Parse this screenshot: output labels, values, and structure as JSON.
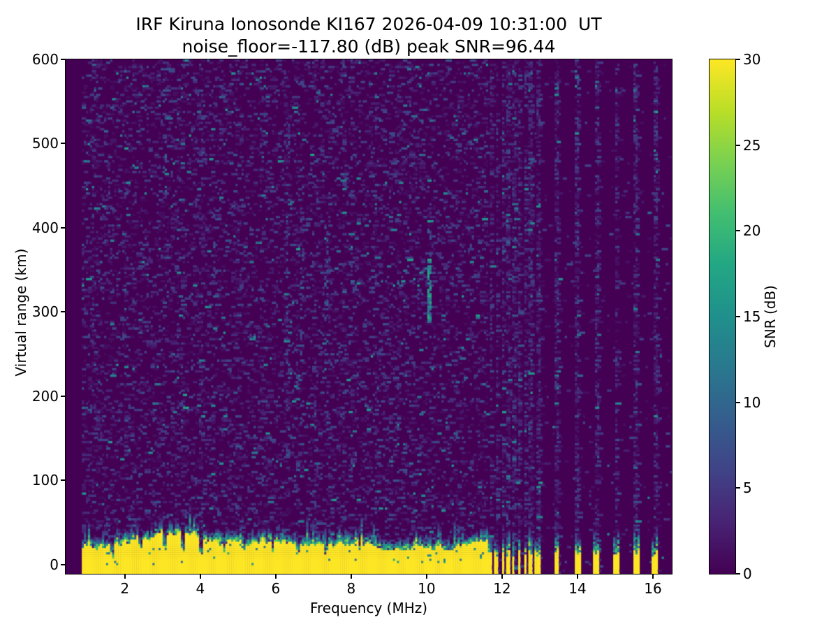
{
  "title": {
    "line1": "IRF Kiruna Ionosonde KI167 2026-04-09 10:31:00  UT",
    "line2": "noise_floor=-117.80 (dB) peak SNR=96.44"
  },
  "chart_data": {
    "type": "heatmap",
    "title": "IRF Kiruna Ionosonde KI167 2026-04-09 10:31:00  UT",
    "subtitle": "noise_floor=-117.80 (dB) peak SNR=96.44",
    "station": "KI167",
    "timestamp_ut": "2026-04-09 10:31:00",
    "noise_floor_db": -117.8,
    "peak_snr_db": 96.44,
    "xlabel": "Frequency (MHz)",
    "ylabel": "Virtual range (km)",
    "xlim": [
      0.43,
      16.5
    ],
    "ylim": [
      -11,
      600
    ],
    "xticks": [
      2,
      4,
      6,
      8,
      10,
      12,
      14,
      16
    ],
    "yticks": [
      0,
      100,
      200,
      300,
      400,
      500,
      600
    ],
    "grid": false,
    "colorbar": {
      "label": "SNR (dB)",
      "min": 0,
      "max": 30,
      "ticks": [
        0,
        5,
        10,
        15,
        20,
        25,
        30
      ],
      "position": "right"
    },
    "colormap": {
      "name": "viridis",
      "stops": [
        [
          0.0,
          [
            68,
            1,
            84
          ]
        ],
        [
          0.1,
          [
            72,
            35,
            116
          ]
        ],
        [
          0.2,
          [
            64,
            67,
            135
          ]
        ],
        [
          0.3,
          [
            52,
            94,
            141
          ]
        ],
        [
          0.4,
          [
            41,
            120,
            142
          ]
        ],
        [
          0.5,
          [
            32,
            144,
            140
          ]
        ],
        [
          0.6,
          [
            34,
            167,
            132
          ]
        ],
        [
          0.7,
          [
            66,
            190,
            113
          ]
        ],
        [
          0.8,
          [
            121,
            209,
            81
          ]
        ],
        [
          0.9,
          [
            186,
            222,
            39
          ]
        ],
        [
          1.0,
          [
            253,
            231,
            37
          ]
        ]
      ]
    },
    "stripes": [
      {
        "c": 11.7,
        "w": 0.1
      },
      {
        "c": 11.86,
        "w": 0.1
      },
      {
        "c": 12.02,
        "w": 0.08
      },
      {
        "c": 12.16,
        "w": 0.09
      },
      {
        "c": 12.305,
        "w": 0.08
      },
      {
        "c": 12.455,
        "w": 0.09
      },
      {
        "c": 12.61,
        "w": 0.09
      },
      {
        "c": 12.755,
        "w": 0.08
      },
      {
        "c": 12.95,
        "w": 0.14
      },
      {
        "c": 13.45,
        "w": 0.13
      },
      {
        "c": 14.0,
        "w": 0.13
      },
      {
        "c": 14.5,
        "w": 0.13
      },
      {
        "c": 15.02,
        "w": 0.15
      },
      {
        "c": 15.55,
        "w": 0.15
      },
      {
        "c": 16.06,
        "w": 0.16
      }
    ],
    "notches": [
      {
        "f": 1.68,
        "w": 0.06,
        "h": 5
      },
      {
        "f": 2.42,
        "w": 0.05,
        "h": 13
      },
      {
        "f": 3.07,
        "w": 0.06,
        "h": 14
      },
      {
        "f": 3.55,
        "w": 0.05,
        "h": 10
      },
      {
        "f": 4.02,
        "w": 0.05,
        "h": 6
      },
      {
        "f": 4.64,
        "w": 0.05,
        "h": 13
      },
      {
        "f": 5.16,
        "w": 0.05,
        "h": 15
      },
      {
        "f": 5.92,
        "w": 0.05,
        "h": 14
      },
      {
        "f": 6.6,
        "w": 0.05,
        "h": 7
      },
      {
        "f": 7.33,
        "w": 0.05,
        "h": 8
      },
      {
        "f": 8.22,
        "w": 0.05,
        "h": 16
      },
      {
        "f": 8.92,
        "w": 0.05,
        "h": 15
      },
      {
        "f": 9.62,
        "w": 0.05,
        "h": 16
      },
      {
        "f": 10.18,
        "w": 0.05,
        "h": 10
      },
      {
        "f": 10.92,
        "w": 0.05,
        "h": 15
      }
    ],
    "features": [
      {
        "f": 10.05,
        "w": 0.05,
        "km": [
          288,
          362
        ],
        "p": 0.8,
        "snr": [
          9,
          19
        ]
      },
      {
        "f": 10.05,
        "w": 0.05,
        "km": [
          362,
          400
        ],
        "p": 0.3,
        "snr": [
          5,
          10
        ]
      },
      {
        "f": 6.33,
        "w": 0.05,
        "km": [
          130,
          540
        ],
        "p": 0.18,
        "snr": [
          3,
          9
        ]
      },
      {
        "f": 6.72,
        "w": 0.05,
        "km": [
          150,
          500
        ],
        "p": 0.13,
        "snr": [
          3,
          8
        ]
      },
      {
        "f": 7.33,
        "w": 0.05,
        "km": [
          250,
          430
        ],
        "p": 0.2,
        "snr": [
          4,
          10
        ]
      },
      {
        "f": 3.07,
        "w": 0.05,
        "km": [
          430,
          565
        ],
        "p": 0.22,
        "snr": [
          4,
          10
        ]
      },
      {
        "f": 4.32,
        "w": 0.05,
        "km": [
          340,
          430
        ],
        "p": 0.18,
        "snr": [
          4,
          9
        ]
      }
    ],
    "render": {
      "seed": 167,
      "cols": 300,
      "rows": 240,
      "data_start": 0.88,
      "band_end": 11.65,
      "noise_density": 0.17,
      "col_boost_prob": 0.09,
      "col_boost": 0.13,
      "bg_density": 0.018,
      "rfi_density": 0.5,
      "rfi_halfwidth": 0.045,
      "spike_prob": 0.07,
      "band_hole_p": 0.02
    }
  }
}
